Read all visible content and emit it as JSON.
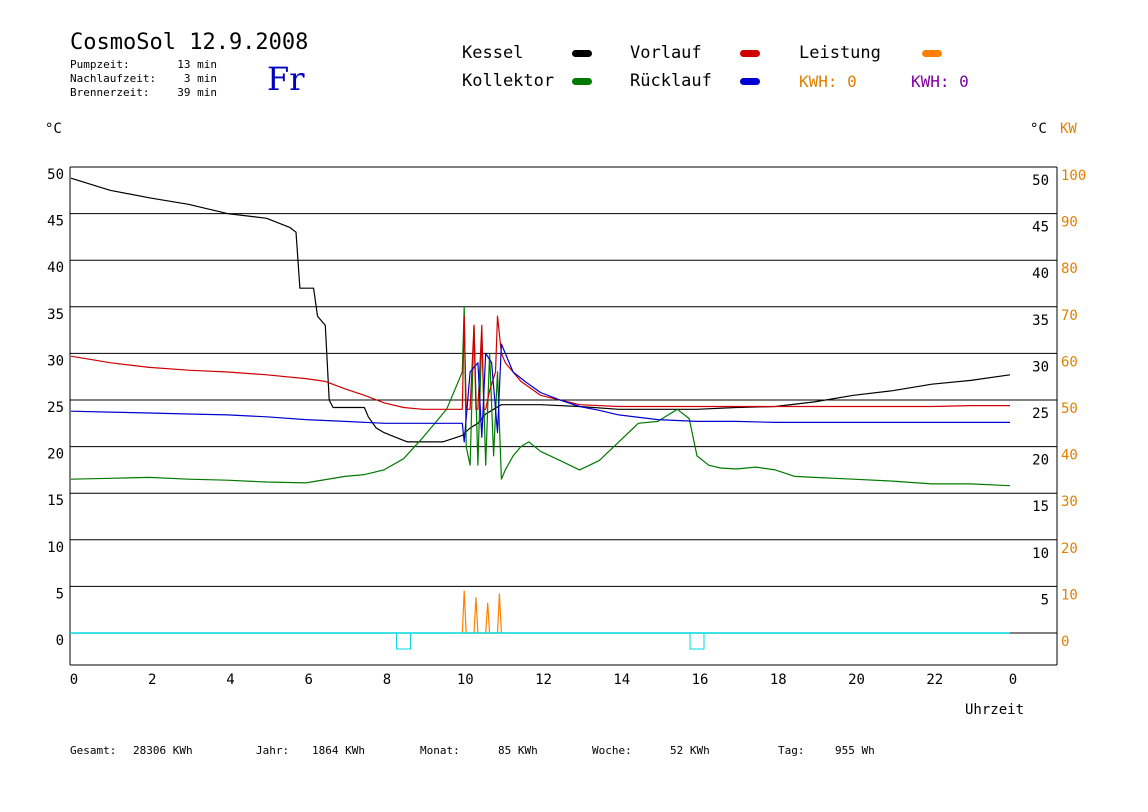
{
  "header": {
    "title": "CosmoSol 12.9.2008",
    "day": "Fr",
    "stats": [
      {
        "label": "Pumpzeit:",
        "value": "13 min"
      },
      {
        "label": "Nachlaufzeit:",
        "value": "3 min"
      },
      {
        "label": "Brennerzeit:",
        "value": "39 min"
      }
    ]
  },
  "legend": {
    "kessel": "Kessel",
    "kollektor": "Kollektor",
    "vorlauf": "Vorlauf",
    "ruecklauf": "Rücklauf",
    "leistung": "Leistung",
    "kwh_orange": "KWH: 0",
    "kwh_purple": "KWH: 0"
  },
  "axes": {
    "left_unit": "°C",
    "right_unit": "°C",
    "right_unit2": "KW",
    "xlabel": "Uhrzeit"
  },
  "footer": [
    {
      "label": "Gesamt:",
      "value": "28306 KWh"
    },
    {
      "label": "Jahr:",
      "value": "1864 KWh"
    },
    {
      "label": "Monat:",
      "value": "85 KWh"
    },
    {
      "label": "Woche:",
      "value": "52 KWh"
    },
    {
      "label": "Tag:",
      "value": "955 Wh"
    }
  ],
  "colors": {
    "kessel": "#000000",
    "kollektor": "#007a00",
    "vorlauf": "#d00000",
    "ruecklauf": "#0000d0",
    "leistung": "#ff8000",
    "kwh_orange": "#e08000",
    "kwh_purple": "#8000a0",
    "pump": "#00d8e0",
    "right_kw": "#e08000"
  },
  "chart_data": {
    "type": "line",
    "xlabel": "Uhrzeit",
    "xlim": [
      0,
      24
    ],
    "x_ticks": [
      "0",
      "2",
      "4",
      "6",
      "8",
      "10",
      "12",
      "14",
      "16",
      "18",
      "20",
      "22",
      "0"
    ],
    "ylim": [
      0,
      50
    ],
    "y_ticks_left": [
      "50",
      "45",
      "40",
      "35",
      "30",
      "25",
      "20",
      "15",
      "10",
      "5",
      "0"
    ],
    "y_ticks_right_c": [
      "50",
      "45",
      "40",
      "35",
      "30",
      "25",
      "20",
      "15",
      "10",
      "5"
    ],
    "y_ticks_right_kw": [
      "100",
      "90",
      "80",
      "70",
      "60",
      "50",
      "40",
      "30",
      "20",
      "10",
      "0"
    ],
    "grid": true,
    "series": [
      {
        "name": "Kessel",
        "color": "#000000",
        "x": [
          0,
          1,
          2,
          3,
          4,
          5,
          5.6,
          5.75,
          5.85,
          6,
          6.2,
          6.3,
          6.5,
          6.6,
          6.7,
          6.85,
          7,
          7.5,
          7.6,
          7.8,
          8,
          8.3,
          8.6,
          9,
          9.5,
          10,
          10.2,
          10.4,
          10.6,
          10.8,
          11,
          11.5,
          12,
          13,
          14,
          15,
          16,
          17,
          18,
          19,
          20,
          21,
          22,
          23,
          24
        ],
        "y": [
          48.8,
          47.5,
          46.7,
          46,
          45,
          44.5,
          43.5,
          43,
          37,
          37,
          37,
          34,
          33,
          25,
          24.2,
          24.2,
          24.2,
          24.2,
          23.2,
          22,
          21.5,
          21,
          20.5,
          20.5,
          20.5,
          21.2,
          22,
          22.5,
          23.5,
          24,
          24.5,
          24.5,
          24.5,
          24.3,
          24,
          24,
          24,
          24.2,
          24.3,
          24.8,
          25.5,
          26,
          26.7,
          27.1,
          27.7
        ]
      },
      {
        "name": "Kollektor",
        "color": "#007a00",
        "x": [
          0,
          1,
          2,
          3,
          4,
          5,
          6,
          7,
          7.5,
          8,
          8.5,
          9,
          9.3,
          9.6,
          10,
          10.05,
          10.1,
          10.2,
          10.3,
          10.4,
          10.5,
          10.6,
          10.7,
          10.8,
          10.9,
          11,
          11.1,
          11.3,
          11.5,
          11.7,
          12,
          12.5,
          13,
          13.5,
          14,
          14.5,
          15,
          15.3,
          15.5,
          15.8,
          16,
          16.3,
          16.6,
          17,
          17.5,
          18,
          18.5,
          19,
          20,
          21,
          22,
          23,
          24
        ],
        "y": [
          16.5,
          16.6,
          16.7,
          16.5,
          16.4,
          16.2,
          16.1,
          16.8,
          17,
          17.5,
          18.7,
          21,
          22.5,
          24,
          28,
          35,
          20,
          18,
          33,
          18,
          32,
          18,
          30,
          19,
          28,
          16.5,
          17.5,
          19,
          20,
          20.5,
          19.5,
          18.5,
          17.5,
          18.5,
          20.5,
          22.5,
          22.7,
          23.5,
          24,
          23,
          19,
          18,
          17.7,
          17.6,
          17.8,
          17.5,
          16.8,
          16.7,
          16.5,
          16.3,
          16,
          16,
          15.8
        ]
      },
      {
        "name": "Vorlauf",
        "color": "#d00000",
        "x": [
          0,
          1,
          2,
          3,
          4,
          5,
          6,
          6.5,
          7,
          7.5,
          8,
          8.5,
          9,
          9.5,
          10,
          10.05,
          10.1,
          10.2,
          10.3,
          10.35,
          10.4,
          10.5,
          10.55,
          10.6,
          10.7,
          10.85,
          10.9,
          11,
          11.1,
          11.5,
          12,
          12.5,
          13,
          14,
          15,
          16,
          17,
          18,
          19,
          20,
          21,
          22,
          23,
          24
        ],
        "y": [
          29.7,
          29,
          28.5,
          28.2,
          28,
          27.7,
          27.3,
          27,
          26.2,
          25.5,
          24.7,
          24.2,
          24,
          24,
          24,
          34,
          24,
          24,
          33,
          24,
          24,
          33,
          24,
          24,
          26,
          28,
          34,
          30,
          29,
          27,
          25.5,
          25,
          24.5,
          24.3,
          24.3,
          24.3,
          24.3,
          24.3,
          24.3,
          24.3,
          24.3,
          24.3,
          24.4,
          24.4
        ]
      },
      {
        "name": "Rücklauf",
        "color": "#0000d0",
        "x": [
          0,
          1,
          2,
          3,
          4,
          5,
          6,
          7,
          8,
          9,
          10,
          10.05,
          10.2,
          10.4,
          10.5,
          10.6,
          10.75,
          10.9,
          11,
          11.1,
          11.3,
          11.6,
          12,
          12.5,
          13,
          13.5,
          14,
          15,
          16,
          17,
          18,
          19,
          20,
          21,
          22,
          23,
          24
        ],
        "y": [
          23.8,
          23.7,
          23.6,
          23.5,
          23.4,
          23.2,
          22.9,
          22.7,
          22.5,
          22.5,
          22.5,
          20.5,
          28,
          29,
          21,
          30,
          29,
          21.5,
          31,
          30,
          28,
          27,
          25.8,
          25,
          24.3,
          23.9,
          23.4,
          22.9,
          22.7,
          22.7,
          22.6,
          22.6,
          22.6,
          22.6,
          22.6,
          22.6,
          22.6
        ]
      },
      {
        "name": "Leistung",
        "color": "#ff8000",
        "x": [
          10,
          10.05,
          10.1,
          10.3,
          10.35,
          10.4,
          10.6,
          10.65,
          10.7,
          10.9,
          10.95,
          11
        ],
        "y": [
          0,
          4.5,
          0,
          0,
          3.8,
          0,
          0,
          3.2,
          0,
          0,
          4.2,
          0
        ]
      }
    ]
  }
}
